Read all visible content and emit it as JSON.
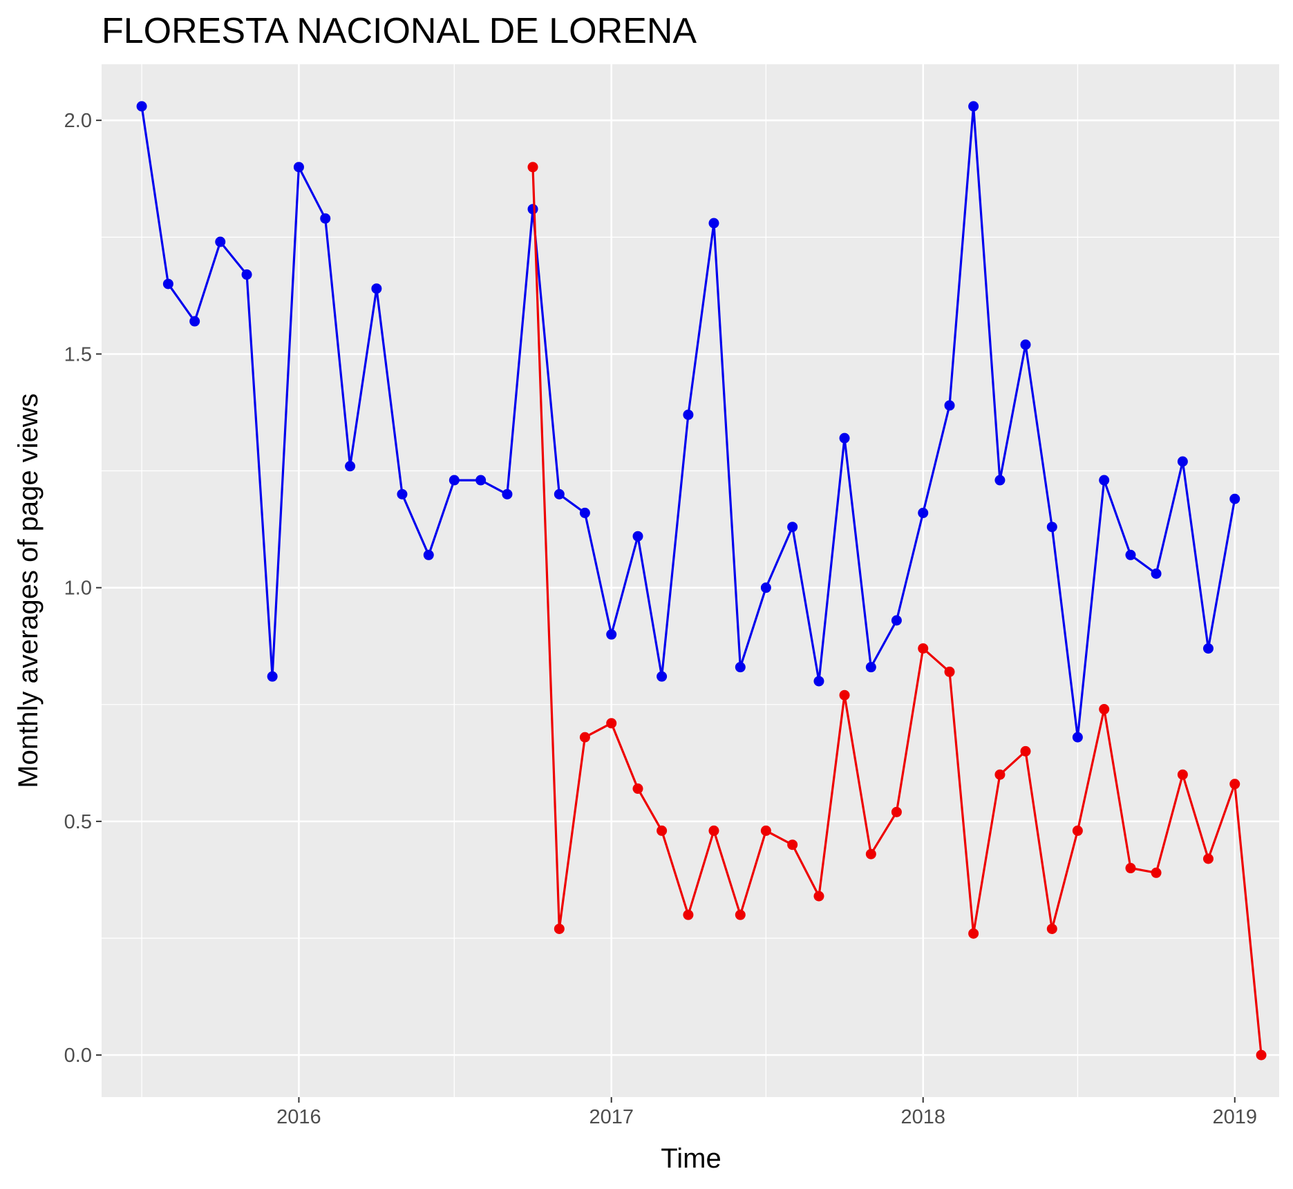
{
  "chart_data": {
    "type": "line",
    "title": "FLORESTA NACIONAL DE LORENA",
    "xlabel": "Time",
    "ylabel": "Monthly averages of page views",
    "xlim": [
      "2015-05-15",
      "2019-02-22"
    ],
    "ylim": [
      -0.09,
      2.12
    ],
    "x_ticks": [
      {
        "label": "2016",
        "date": "2016-01-01"
      },
      {
        "label": "2017",
        "date": "2017-01-01"
      },
      {
        "label": "2018",
        "date": "2018-01-01"
      },
      {
        "label": "2019",
        "date": "2019-01-01"
      }
    ],
    "y_ticks": [
      0.0,
      0.5,
      1.0,
      1.5,
      2.0
    ],
    "y_tick_labels": [
      "0.0",
      "0.5",
      "1.0",
      "1.5",
      "2.0"
    ],
    "grid": true,
    "background": "#ebebeb",
    "grid_color": "#ffffff",
    "series": [
      {
        "color": "#0000ee",
        "points": [
          [
            "2015-07-01",
            2.03
          ],
          [
            "2015-08-01",
            1.65
          ],
          [
            "2015-09-01",
            1.57
          ],
          [
            "2015-10-01",
            1.74
          ],
          [
            "2015-11-01",
            1.67
          ],
          [
            "2015-12-01",
            0.81
          ],
          [
            "2016-01-01",
            1.9
          ],
          [
            "2016-02-01",
            1.79
          ],
          [
            "2016-03-01",
            1.26
          ],
          [
            "2016-04-01",
            1.64
          ],
          [
            "2016-05-01",
            1.2
          ],
          [
            "2016-06-01",
            1.07
          ],
          [
            "2016-07-01",
            1.23
          ],
          [
            "2016-08-01",
            1.23
          ],
          [
            "2016-09-01",
            1.2
          ],
          [
            "2016-10-01",
            1.81
          ],
          [
            "2016-11-01",
            1.2
          ],
          [
            "2016-12-01",
            1.16
          ],
          [
            "2017-01-01",
            0.9
          ],
          [
            "2017-02-01",
            1.11
          ],
          [
            "2017-03-01",
            0.81
          ],
          [
            "2017-04-01",
            1.37
          ],
          [
            "2017-05-01",
            1.78
          ],
          [
            "2017-06-01",
            0.83
          ],
          [
            "2017-07-01",
            1.0
          ],
          [
            "2017-08-01",
            1.13
          ],
          [
            "2017-09-01",
            0.8
          ],
          [
            "2017-10-01",
            1.32
          ],
          [
            "2017-11-01",
            0.83
          ],
          [
            "2017-12-01",
            0.93
          ],
          [
            "2018-01-01",
            1.16
          ],
          [
            "2018-02-01",
            1.39
          ],
          [
            "2018-03-01",
            2.03
          ],
          [
            "2018-04-01",
            1.23
          ],
          [
            "2018-05-01",
            1.52
          ],
          [
            "2018-06-01",
            1.13
          ],
          [
            "2018-07-01",
            0.68
          ],
          [
            "2018-08-01",
            1.23
          ],
          [
            "2018-09-01",
            1.07
          ],
          [
            "2018-10-01",
            1.03
          ],
          [
            "2018-11-01",
            1.27
          ],
          [
            "2018-12-01",
            0.87
          ],
          [
            "2019-01-01",
            1.19
          ]
        ]
      },
      {
        "color": "#ee0000",
        "points": [
          [
            "2016-10-01",
            1.9
          ],
          [
            "2016-11-01",
            0.27
          ],
          [
            "2016-12-01",
            0.68
          ],
          [
            "2017-01-01",
            0.71
          ],
          [
            "2017-02-01",
            0.57
          ],
          [
            "2017-03-01",
            0.48
          ],
          [
            "2017-04-01",
            0.3
          ],
          [
            "2017-05-01",
            0.48
          ],
          [
            "2017-06-01",
            0.3
          ],
          [
            "2017-07-01",
            0.48
          ],
          [
            "2017-08-01",
            0.45
          ],
          [
            "2017-09-01",
            0.34
          ],
          [
            "2017-10-01",
            0.77
          ],
          [
            "2017-11-01",
            0.43
          ],
          [
            "2017-12-01",
            0.52
          ],
          [
            "2018-01-01",
            0.87
          ],
          [
            "2018-02-01",
            0.82
          ],
          [
            "2018-03-01",
            0.26
          ],
          [
            "2018-04-01",
            0.6
          ],
          [
            "2018-05-01",
            0.65
          ],
          [
            "2018-06-01",
            0.27
          ],
          [
            "2018-07-01",
            0.48
          ],
          [
            "2018-08-01",
            0.74
          ],
          [
            "2018-09-01",
            0.4
          ],
          [
            "2018-10-01",
            0.39
          ],
          [
            "2018-11-01",
            0.6
          ],
          [
            "2018-12-01",
            0.42
          ],
          [
            "2019-01-01",
            0.58
          ],
          [
            "2019-02-01",
            0.0
          ]
        ]
      }
    ]
  }
}
